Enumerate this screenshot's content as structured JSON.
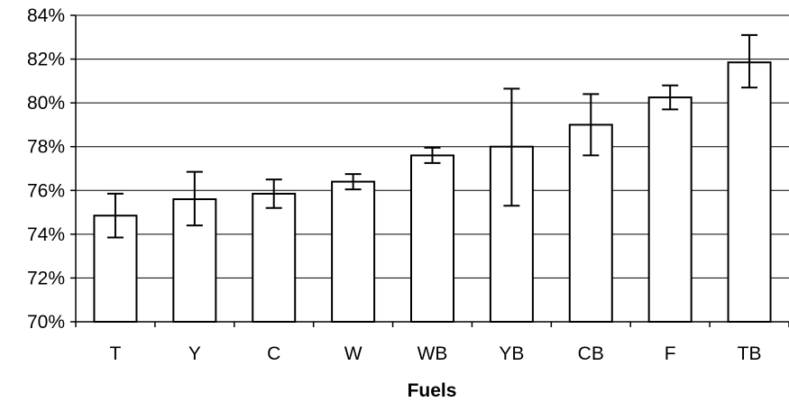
{
  "chart_data": {
    "type": "bar",
    "title": "",
    "xlabel": "Fuels",
    "ylabel": "",
    "categories": [
      "T",
      "Y",
      "C",
      "W",
      "WB",
      "YB",
      "CB",
      "F",
      "TB"
    ],
    "values": [
      74.85,
      75.6,
      75.85,
      76.4,
      77.6,
      78.0,
      79.0,
      80.25,
      81.85
    ],
    "error_low": [
      73.85,
      74.4,
      75.2,
      76.05,
      77.25,
      75.3,
      77.6,
      79.7,
      80.7
    ],
    "error_high": [
      75.85,
      76.85,
      76.5,
      76.75,
      77.95,
      80.65,
      80.4,
      80.8,
      83.1
    ],
    "ylim": [
      70,
      84
    ],
    "yticks": [
      70,
      72,
      74,
      76,
      78,
      80,
      82,
      84
    ],
    "ytick_labels": [
      "70%",
      "72%",
      "74%",
      "76%",
      "78%",
      "80%",
      "82%",
      "84%"
    ],
    "grid": true,
    "legend": "none",
    "bar_fill": "#ffffff",
    "bar_stroke": "#000000",
    "grid_color": "#000000"
  }
}
